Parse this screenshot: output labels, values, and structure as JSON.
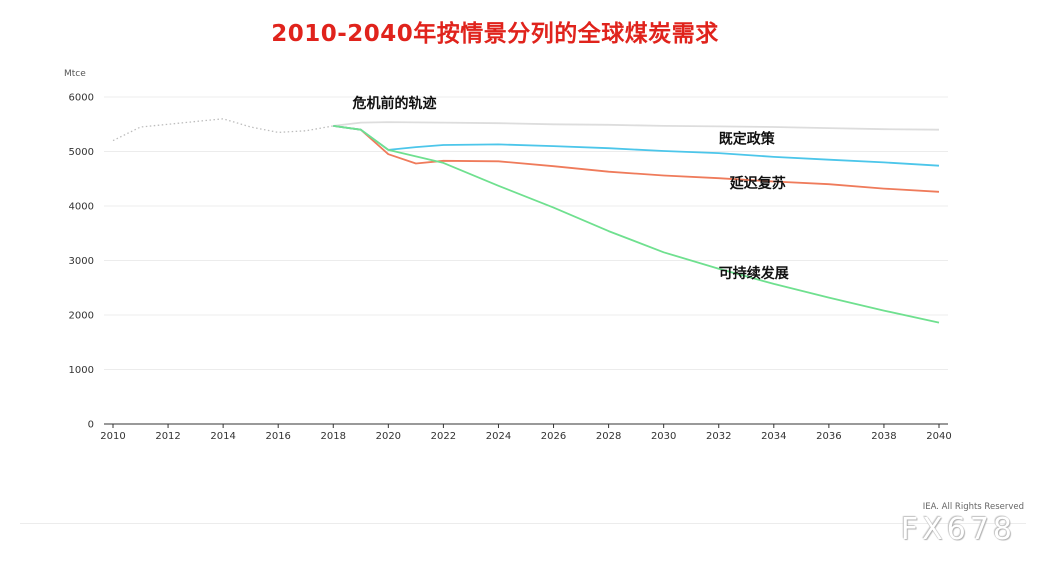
{
  "title": "2010-2040年按情景分列的全球煤炭需求",
  "credit": "IEA. All Rights Reserved",
  "watermark": "FX678",
  "chart_data": {
    "type": "line",
    "title": "2010-2040年按情景分列的全球煤炭需求",
    "ylabel": "Mtce",
    "xlabel": "",
    "xlim": [
      2010,
      2040
    ],
    "ylim": [
      0,
      6000
    ],
    "x_ticks": [
      "2010",
      "2012",
      "2014",
      "2016",
      "2018",
      "2020",
      "2022",
      "2024",
      "2026",
      "2028",
      "2030",
      "2032",
      "2034",
      "2036",
      "2038",
      "2040"
    ],
    "y_ticks": [
      "0",
      "1000",
      "2000",
      "3000",
      "4000",
      "5000",
      "6000"
    ],
    "grid": true,
    "series": [
      {
        "name": "",
        "color": "#bdbdbd",
        "style": "dotted",
        "points": [
          [
            2010,
            5200
          ],
          [
            2011,
            5450
          ],
          [
            2012,
            5500
          ],
          [
            2013,
            5550
          ],
          [
            2014,
            5600
          ],
          [
            2015,
            5450
          ],
          [
            2016,
            5350
          ],
          [
            2017,
            5380
          ],
          [
            2018,
            5470
          ]
        ]
      },
      {
        "name": "危机前的轨迹",
        "color": "#dddddd",
        "style": "solid",
        "points": [
          [
            2018,
            5470
          ],
          [
            2019,
            5530
          ],
          [
            2020,
            5540
          ],
          [
            2022,
            5530
          ],
          [
            2024,
            5520
          ],
          [
            2026,
            5500
          ],
          [
            2028,
            5490
          ],
          [
            2030,
            5470
          ],
          [
            2032,
            5460
          ],
          [
            2034,
            5450
          ],
          [
            2036,
            5430
          ],
          [
            2038,
            5410
          ],
          [
            2040,
            5400
          ]
        ]
      },
      {
        "name": "既定政策",
        "color": "#4cc6ea",
        "style": "solid",
        "points": [
          [
            2018,
            5470
          ],
          [
            2019,
            5400
          ],
          [
            2020,
            5030
          ],
          [
            2021,
            5080
          ],
          [
            2022,
            5120
          ],
          [
            2024,
            5130
          ],
          [
            2026,
            5100
          ],
          [
            2028,
            5060
          ],
          [
            2030,
            5010
          ],
          [
            2032,
            4970
          ],
          [
            2034,
            4900
          ],
          [
            2036,
            4850
          ],
          [
            2038,
            4800
          ],
          [
            2040,
            4740
          ]
        ]
      },
      {
        "name": "延迟复苏",
        "color": "#ef7b5b",
        "style": "solid",
        "points": [
          [
            2018,
            5470
          ],
          [
            2019,
            5400
          ],
          [
            2020,
            4950
          ],
          [
            2021,
            4780
          ],
          [
            2022,
            4830
          ],
          [
            2024,
            4820
          ],
          [
            2026,
            4730
          ],
          [
            2028,
            4630
          ],
          [
            2030,
            4560
          ],
          [
            2032,
            4510
          ],
          [
            2034,
            4450
          ],
          [
            2036,
            4400
          ],
          [
            2038,
            4320
          ],
          [
            2040,
            4260
          ]
        ]
      },
      {
        "name": "可持续发展",
        "color": "#6fe08f",
        "style": "solid",
        "points": [
          [
            2018,
            5470
          ],
          [
            2019,
            5400
          ],
          [
            2020,
            5030
          ],
          [
            2022,
            4790
          ],
          [
            2024,
            4370
          ],
          [
            2026,
            3970
          ],
          [
            2028,
            3540
          ],
          [
            2030,
            3150
          ],
          [
            2032,
            2850
          ],
          [
            2034,
            2570
          ],
          [
            2036,
            2320
          ],
          [
            2038,
            2080
          ],
          [
            2040,
            1860
          ]
        ]
      }
    ],
    "annotations": [
      {
        "text": "危机前的轨迹",
        "x": 2018.7,
        "y": 5800
      },
      {
        "text": "既定政策",
        "x": 2032.0,
        "y": 5150
      },
      {
        "text": "延迟复苏",
        "x": 2032.4,
        "y": 4330
      },
      {
        "text": "可持续发展",
        "x": 2032.0,
        "y": 2680
      }
    ]
  }
}
